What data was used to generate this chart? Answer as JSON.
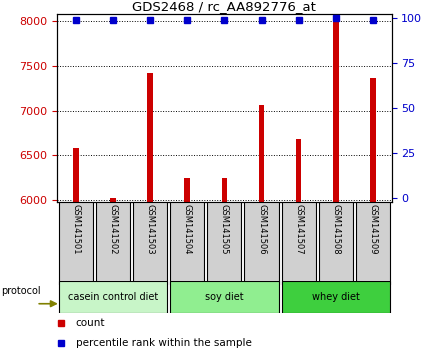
{
  "title": "GDS2468 / rc_AA892776_at",
  "samples": [
    "GSM141501",
    "GSM141502",
    "GSM141503",
    "GSM141504",
    "GSM141505",
    "GSM141506",
    "GSM141507",
    "GSM141508",
    "GSM141509"
  ],
  "counts": [
    6580,
    6020,
    7420,
    6250,
    6250,
    7060,
    6680,
    8000,
    7360
  ],
  "percentile_ranks": [
    99,
    99,
    99,
    99,
    99,
    99,
    99,
    100,
    99
  ],
  "ylim_left": [
    5980,
    8080
  ],
  "ylim_right": [
    -2,
    102
  ],
  "yticks_left": [
    6000,
    6500,
    7000,
    7500,
    8000
  ],
  "yticks_right": [
    0,
    25,
    50,
    75,
    100
  ],
  "bar_color": "#cc0000",
  "bar_width": 0.15,
  "percentile_color": "#0000cc",
  "diet_info": [
    {
      "start": 0,
      "end": 2,
      "label": "casein control diet",
      "color": "#c8f5c8"
    },
    {
      "start": 3,
      "end": 5,
      "label": "soy diet",
      "color": "#90ee90"
    },
    {
      "start": 6,
      "end": 8,
      "label": "whey diet",
      "color": "#3ecf3e"
    }
  ],
  "sample_box_color": "#d0d0d0",
  "tick_label_color_left": "#cc0000",
  "tick_label_color_right": "#0000cc",
  "legend_count_color": "#cc0000",
  "legend_percentile_color": "#0000cc",
  "protocol_label": "protocol",
  "arrow_color": "#808000"
}
